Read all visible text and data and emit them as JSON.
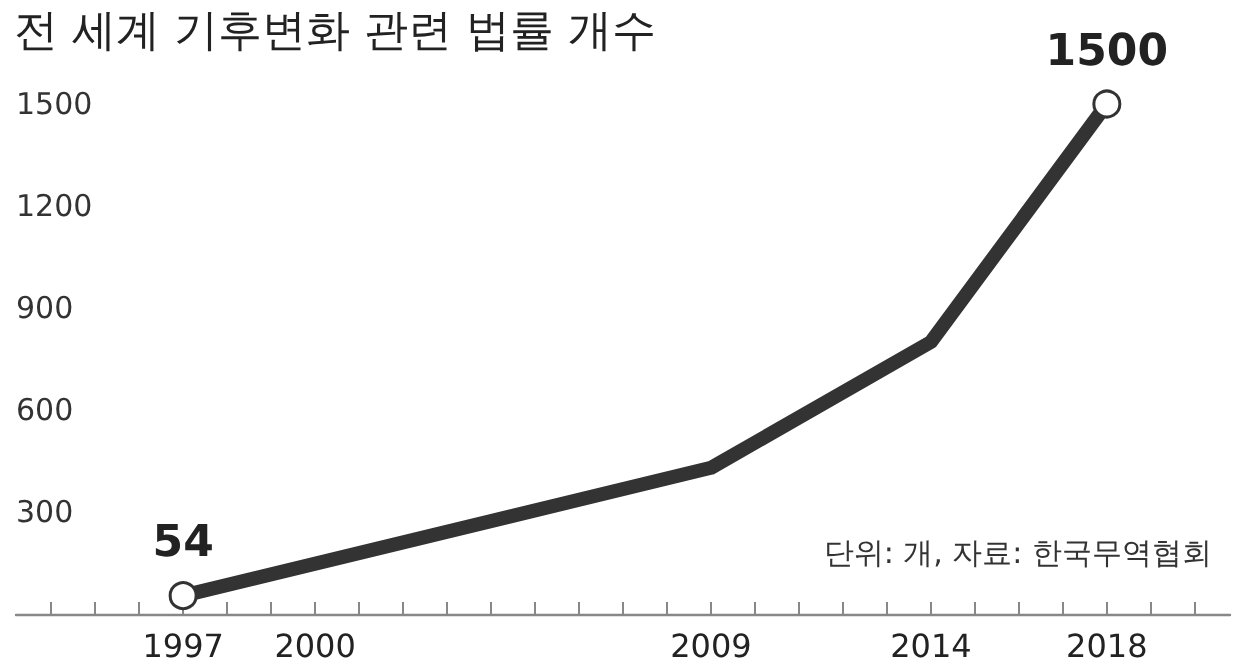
{
  "chart_data": {
    "type": "line",
    "title": "전 세계 기후변화 관련 법률 개수",
    "x": [
      1997,
      2009,
      2014,
      2018
    ],
    "series": [
      {
        "color": "#333333",
        "values": [
          54,
          430,
          800,
          1500
        ]
      }
    ],
    "value_labels": [
      "54",
      null,
      null,
      "1500"
    ],
    "marker": "circle",
    "line_style": "solid",
    "grid": false,
    "xlim": [
      1993.2,
      2020.8
    ],
    "xticks": [
      {
        "value": 1994,
        "label": null
      },
      {
        "value": 1995,
        "label": null
      },
      {
        "value": 1996,
        "label": null
      },
      1997,
      {
        "value": 1998,
        "label": null
      },
      {
        "value": 1999,
        "label": null
      },
      2000,
      {
        "value": 2001,
        "label": null
      },
      {
        "value": 2002,
        "label": null
      },
      {
        "value": 2003,
        "label": null
      },
      {
        "value": 2004,
        "label": null
      },
      {
        "value": 2005,
        "label": null
      },
      {
        "value": 2006,
        "label": null
      },
      {
        "value": 2007,
        "label": null
      },
      {
        "value": 2008,
        "label": null
      },
      2009,
      {
        "value": 2010,
        "label": null
      },
      {
        "value": 2011,
        "label": null
      },
      {
        "value": 2012,
        "label": null
      },
      {
        "value": 2013,
        "label": null
      },
      2014,
      {
        "value": 2015,
        "label": null
      },
      {
        "value": 2016,
        "label": null
      },
      {
        "value": 2017,
        "label": null
      },
      2018,
      {
        "value": 2019,
        "label": null
      },
      {
        "value": 2020,
        "label": null
      }
    ],
    "ylim": [
      0,
      1500
    ],
    "yticks": [
      300,
      600,
      900,
      1200,
      1500
    ],
    "annotations": [
      "단위: 개, 자료: 한국무역협회"
    ]
  }
}
